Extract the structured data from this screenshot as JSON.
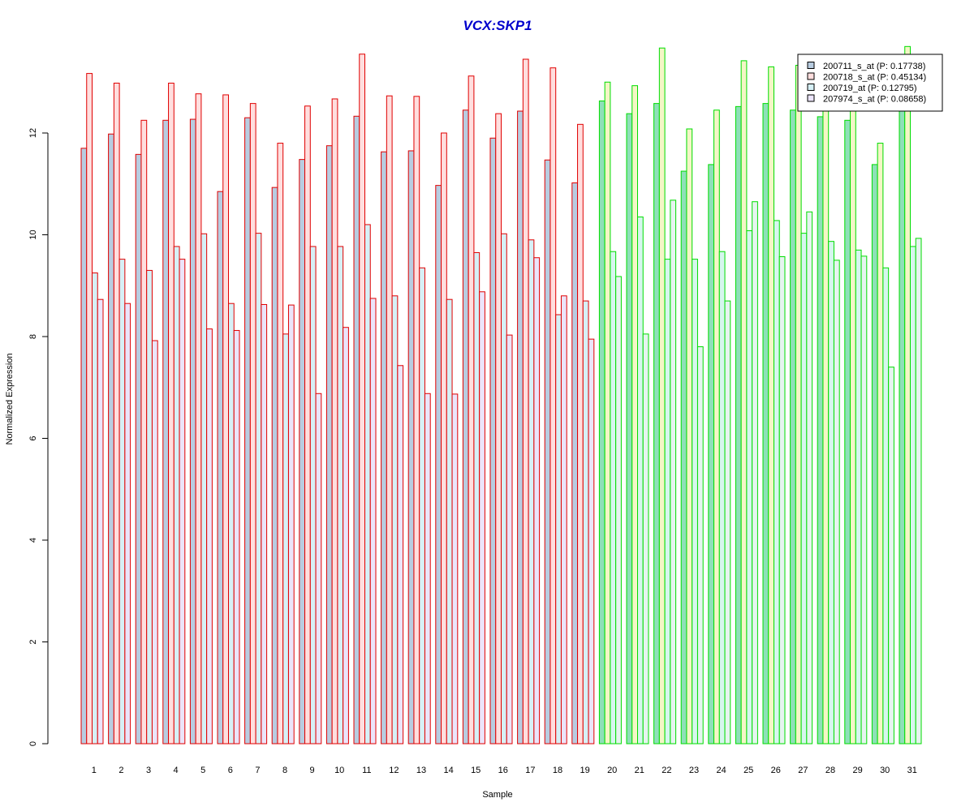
{
  "chart_data": {
    "type": "bar",
    "title": "VCX:SKP1",
    "xlabel": "Sample",
    "ylabel": "Normalized Expression",
    "ylim": [
      0,
      14
    ],
    "yticks": [
      0,
      2,
      4,
      6,
      8,
      10,
      12
    ],
    "grid": false,
    "legend_position": "top-right",
    "categories": [
      "1",
      "2",
      "3",
      "4",
      "5",
      "6",
      "7",
      "8",
      "9",
      "10",
      "11",
      "12",
      "13",
      "14",
      "15",
      "16",
      "17",
      "18",
      "19",
      "20",
      "21",
      "22",
      "23",
      "24",
      "25",
      "26",
      "27",
      "28",
      "29",
      "30",
      "31"
    ],
    "group_colors": {
      "1-19": "#e00000",
      "20-31": "#00dd00"
    },
    "series_fills": [
      "#b8cce0",
      "#ffdede",
      "#d6f0f6",
      "#ebe4fa"
    ],
    "series_fills_group2": [
      "#8ee0b8",
      "#f4f6c6",
      "#d6f6ee",
      "#e6f4f0"
    ],
    "series": [
      {
        "name": "200711_s_at (P: 0.17738)",
        "values": [
          11.7,
          11.98,
          11.58,
          12.25,
          12.27,
          10.85,
          12.3,
          10.93,
          11.48,
          11.75,
          12.33,
          11.63,
          11.65,
          10.97,
          12.45,
          11.9,
          12.43,
          11.47,
          11.02,
          12.63,
          12.38,
          12.58,
          11.25,
          11.38,
          12.52,
          12.58,
          12.45,
          12.32,
          12.25,
          11.38,
          12.9
        ]
      },
      {
        "name": "200718_s_at (P: 0.45134)",
        "values": [
          13.17,
          12.98,
          12.25,
          12.98,
          12.77,
          12.75,
          12.58,
          11.8,
          12.53,
          12.67,
          13.55,
          12.73,
          12.72,
          12.0,
          13.12,
          12.38,
          13.45,
          13.28,
          12.17,
          13.0,
          12.93,
          13.67,
          12.08,
          12.45,
          13.42,
          13.3,
          13.33,
          13.17,
          13.25,
          11.8,
          13.7
        ]
      },
      {
        "name": "200719_at (P: 0.12795)",
        "values": [
          9.25,
          9.52,
          9.3,
          9.77,
          10.02,
          8.65,
          10.03,
          8.05,
          9.77,
          9.77,
          10.2,
          8.8,
          9.35,
          8.73,
          9.65,
          10.02,
          9.9,
          8.43,
          8.7,
          9.67,
          10.35,
          9.52,
          9.52,
          9.67,
          10.08,
          10.28,
          10.03,
          9.87,
          9.7,
          9.35,
          9.77
        ]
      },
      {
        "name": "207974_s_at (P: 0.08658)",
        "values": [
          8.73,
          8.65,
          7.92,
          9.52,
          8.15,
          8.12,
          8.63,
          8.62,
          6.88,
          8.18,
          8.75,
          7.43,
          6.88,
          6.87,
          8.88,
          8.03,
          9.55,
          8.8,
          7.95,
          9.18,
          8.05,
          10.68,
          7.8,
          8.7,
          10.65,
          9.57,
          10.45,
          9.5,
          9.58,
          7.4,
          9.93
        ]
      }
    ]
  }
}
